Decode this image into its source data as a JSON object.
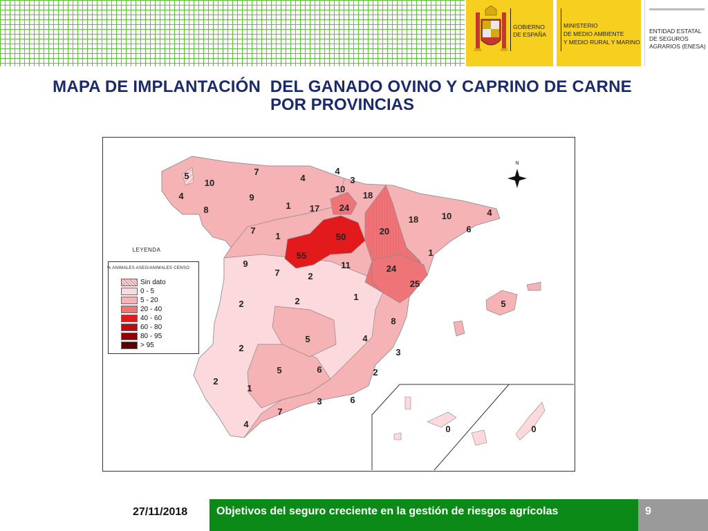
{
  "header": {
    "gov_label_line1": "GOBIERNO",
    "gov_label_line2": "DE ESPAÑA",
    "ministry_line1": "MINISTERIO",
    "ministry_line2": "DE MEDIO AMBIENTE",
    "ministry_line3": "Y MEDIO RURAL Y MARINO",
    "enesa_line1": "ENTIDAD ESTATAL",
    "enesa_line2": "DE SEGUROS",
    "enesa_line3": "AGRARIOS (ENESA)"
  },
  "title": {
    "line1": "MAPA DE IMPLANTACIÓN  DEL GANADO OVINO Y CAPRINO DE CARNE",
    "line2": "POR PROVINCIAS"
  },
  "map": {
    "north_label": "N",
    "legend": {
      "title": "LEYENDA",
      "subtitle": "% ANIMALES ASEG/ANIMALES CENSO",
      "items": [
        {
          "label": "Sin dato",
          "color": "hatch"
        },
        {
          "label": "0 - 5",
          "color": "#fbd9dc"
        },
        {
          "label": "5 - 20",
          "color": "#f6b3b6"
        },
        {
          "label": "20 - 40",
          "color": "#ef7478"
        },
        {
          "label": "40 - 60",
          "color": "#e31a1c"
        },
        {
          "label": "60 - 80",
          "color": "#b80e10"
        },
        {
          "label": "80 - 95",
          "color": "#8b0608"
        },
        {
          "label": "> 95",
          "color": "#5a0204"
        }
      ]
    },
    "province_values": [
      {
        "label": "5"
      },
      {
        "label": "7"
      },
      {
        "label": "10"
      },
      {
        "label": "4"
      },
      {
        "label": "9"
      },
      {
        "label": "8"
      },
      {
        "label": "7"
      },
      {
        "label": "1"
      },
      {
        "label": "1"
      },
      {
        "label": "4"
      },
      {
        "label": "4"
      },
      {
        "label": "3"
      },
      {
        "label": "10"
      },
      {
        "label": "18"
      },
      {
        "label": "17"
      },
      {
        "label": "24"
      },
      {
        "label": "18"
      },
      {
        "label": "10"
      },
      {
        "label": "4"
      },
      {
        "label": "6"
      },
      {
        "label": "20"
      },
      {
        "label": "50"
      },
      {
        "label": "55"
      },
      {
        "label": "9"
      },
      {
        "label": "7"
      },
      {
        "label": "2"
      },
      {
        "label": "11"
      },
      {
        "label": "24"
      },
      {
        "label": "1"
      },
      {
        "label": "25"
      },
      {
        "label": "2"
      },
      {
        "label": "2"
      },
      {
        "label": "1"
      },
      {
        "label": "5"
      },
      {
        "label": "8"
      },
      {
        "label": "5"
      },
      {
        "label": "4"
      },
      {
        "label": "2"
      },
      {
        "label": "3"
      },
      {
        "label": "5"
      },
      {
        "label": "6"
      },
      {
        "label": "2"
      },
      {
        "label": "2"
      },
      {
        "label": "1"
      },
      {
        "label": "3"
      },
      {
        "label": "6"
      },
      {
        "label": "7"
      },
      {
        "label": "4"
      },
      {
        "label": "0"
      },
      {
        "label": "0"
      }
    ]
  },
  "footer": {
    "date": "27/11/2018",
    "text": "Objetivos del seguro creciente en la gestión de riesgos agrícolas",
    "page": "9"
  }
}
